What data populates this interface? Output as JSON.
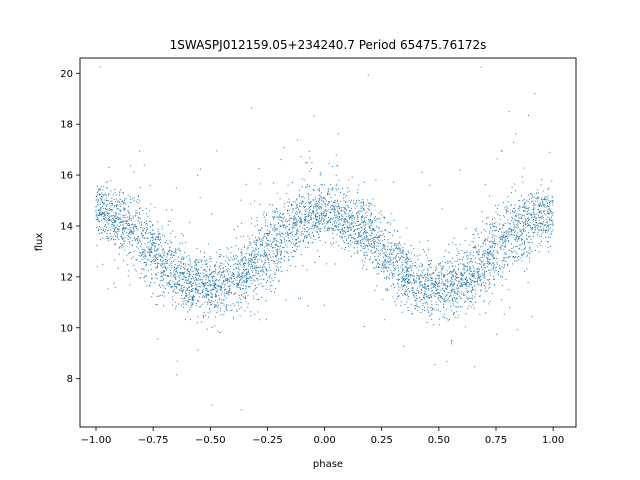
{
  "chart_data": {
    "type": "scatter",
    "title": "1SWASPJ012159.05+234240.7 Period 65475.76172s",
    "xlabel": "phase",
    "ylabel": "flux",
    "xlim": [
      -1.07,
      1.1
    ],
    "ylim": [
      6.1,
      20.6
    ],
    "xticks": [
      -1.0,
      -0.75,
      -0.5,
      -0.25,
      0.0,
      0.25,
      0.5,
      0.75,
      1.0
    ],
    "xtick_labels": [
      "−1.00",
      "−0.75",
      "−0.50",
      "−0.25",
      "0.00",
      "0.25",
      "0.50",
      "0.75",
      "1.00"
    ],
    "yticks": [
      8,
      10,
      12,
      14,
      16,
      18,
      20
    ],
    "ytick_labels": [
      "8",
      "10",
      "12",
      "14",
      "16",
      "18",
      "20"
    ],
    "grid": false,
    "marker_color": "#1f77b4",
    "phase_range": [
      -1.0,
      1.0
    ],
    "light_curve": {
      "max_phase": 0.0,
      "min_phase": 0.5,
      "period_in_phase": 1.0,
      "flux_max": 14.6,
      "flux_min": 11.5,
      "scatter_band": 1.6
    },
    "series": [
      {
        "values_sample": [
          [
            -1.0,
            14.2
          ],
          [
            -0.9,
            14.0
          ],
          [
            -0.8,
            13.3
          ],
          [
            -0.7,
            12.2
          ],
          [
            -0.6,
            11.6
          ],
          [
            -0.5,
            11.5
          ],
          [
            -0.4,
            12.0
          ],
          [
            -0.3,
            13.4
          ],
          [
            -0.2,
            14.3
          ],
          [
            -0.1,
            14.6
          ],
          [
            0.0,
            14.6
          ],
          [
            0.1,
            14.1
          ],
          [
            0.2,
            13.0
          ],
          [
            0.3,
            11.9
          ],
          [
            0.4,
            11.5
          ],
          [
            0.5,
            11.5
          ],
          [
            0.6,
            12.1
          ],
          [
            0.7,
            13.3
          ],
          [
            0.8,
            14.2
          ],
          [
            0.9,
            14.5
          ],
          [
            1.0,
            14.4
          ]
        ]
      }
    ]
  }
}
